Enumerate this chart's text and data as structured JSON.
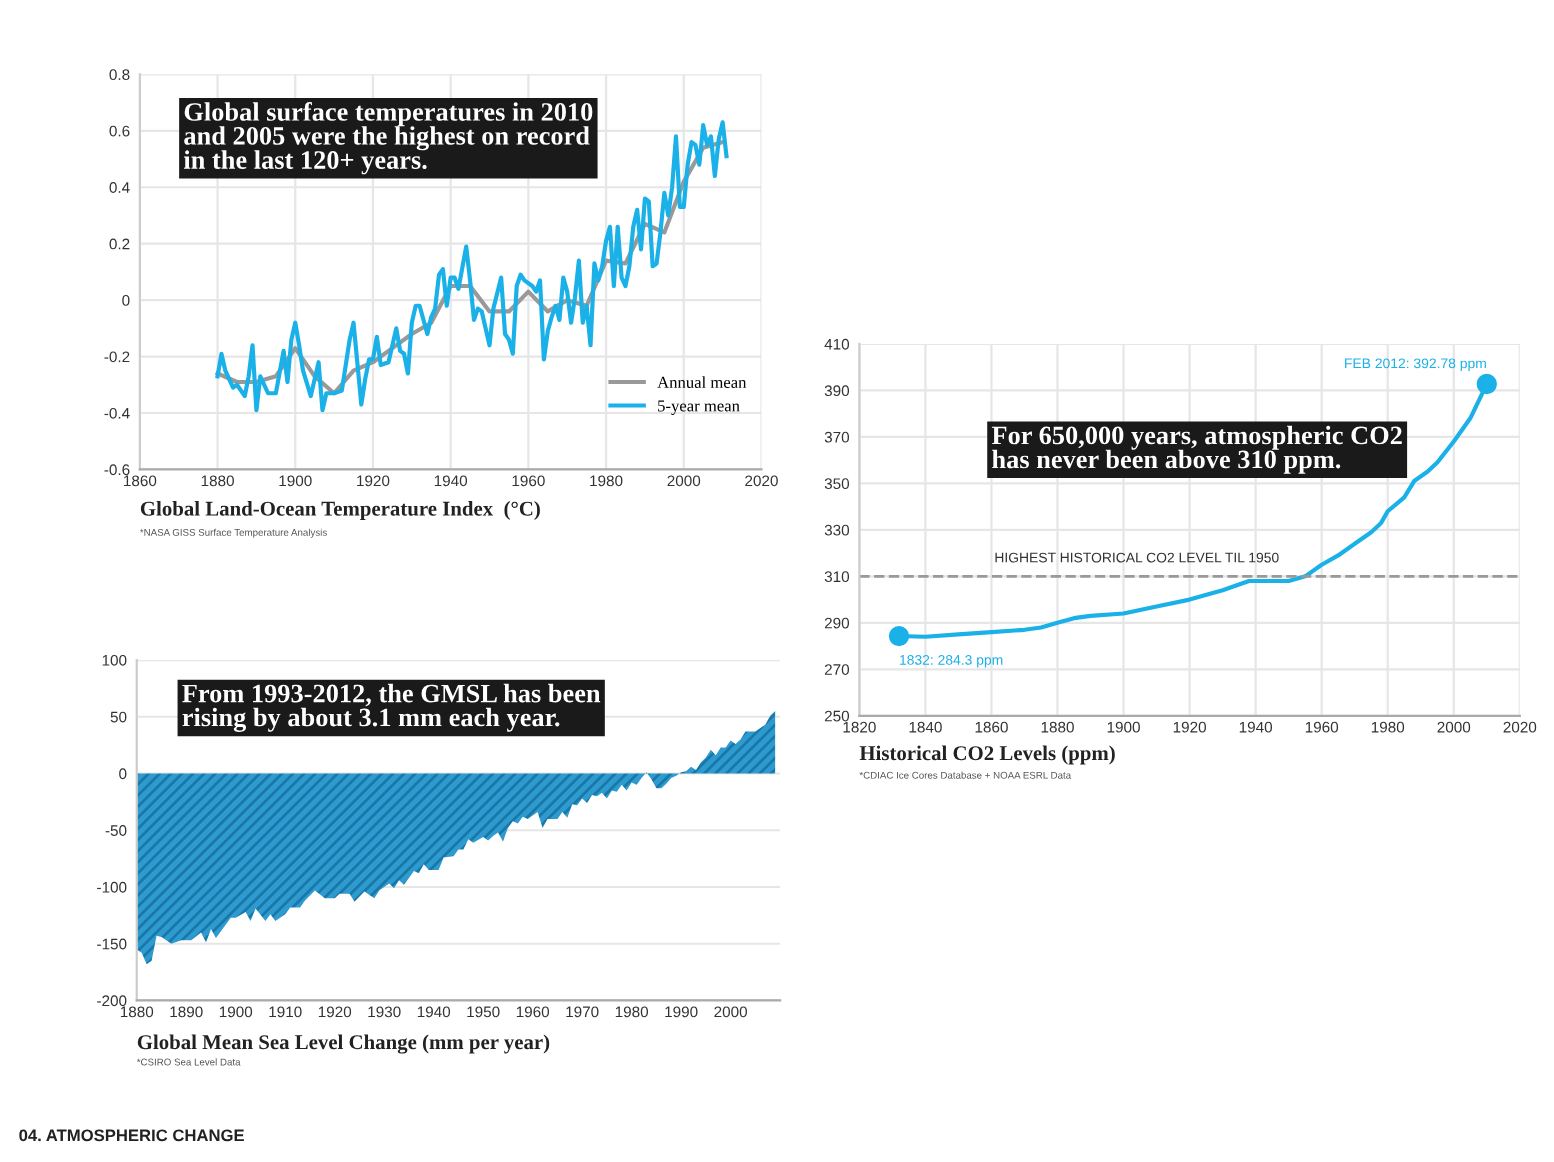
{
  "chart_data": [
    {
      "type": "line",
      "title": "Global Land-Ocean Temperature Index  (°C)",
      "annotations": [
        "Global surface temperatures in 2010\nand 2005 were the highest on record\nin the last 120+ years.",
        "*NASA GISS Surface Temperature Analysis",
        "04. ATMOSPHERIC CHANGE"
      ],
      "series": [
        {
          "name": "Annual mean",
          "color": "#999999",
          "x": [
            1880,
            1885,
            1890,
            1895,
            1900,
            1905,
            1910,
            1915,
            1920,
            1925,
            1930,
            1935,
            1940,
            1945,
            1950,
            1955,
            1960,
            1965,
            1970,
            1975,
            1980,
            1985,
            1990,
            1995,
            2000,
            2005,
            2010
          ],
          "values": [
            -0.26,
            -0.29,
            -0.29,
            -0.27,
            -0.17,
            -0.27,
            -0.33,
            -0.25,
            -0.22,
            -0.17,
            -0.12,
            -0.08,
            0.05,
            0.05,
            -0.04,
            -0.04,
            0.03,
            -0.04,
            0.0,
            -0.02,
            0.14,
            0.13,
            0.27,
            0.24,
            0.42,
            0.54,
            0.56
          ]
        },
        {
          "name": "5-year mean",
          "color": "#1ab0e8",
          "x": [
            1880,
            1881,
            1882,
            1884,
            1885,
            1887,
            1888,
            1889,
            1890,
            1891,
            1893,
            1895,
            1897,
            1898,
            1899,
            1900,
            1901,
            1902,
            1904,
            1906,
            1907,
            1908,
            1910,
            1912,
            1914,
            1915,
            1917,
            1918,
            1919,
            1920,
            1921,
            1922,
            1924,
            1926,
            1927,
            1928,
            1929,
            1930,
            1931,
            1932,
            1934,
            1935,
            1936,
            1937,
            1938,
            1939,
            1940,
            1941,
            1942,
            1944,
            1945,
            1946,
            1947,
            1948,
            1950,
            1951,
            1953,
            1954,
            1955,
            1956,
            1957,
            1958,
            1959,
            1961,
            1962,
            1963,
            1964,
            1965,
            1966,
            1967,
            1968,
            1969,
            1970,
            1971,
            1972,
            1973,
            1974,
            1975,
            1976,
            1977,
            1978,
            1979,
            1980,
            1981,
            1982,
            1983,
            1984,
            1985,
            1986,
            1987,
            1988,
            1989,
            1990,
            1991,
            1992,
            1993,
            1994,
            1995,
            1996,
            1997,
            1998,
            1999,
            2000,
            2001,
            2002,
            2003,
            2004,
            2005,
            2006,
            2007,
            2008,
            2009,
            2010,
            2011
          ],
          "values": [
            -0.27,
            -0.19,
            -0.25,
            -0.31,
            -0.3,
            -0.34,
            -0.27,
            -0.16,
            -0.39,
            -0.27,
            -0.33,
            -0.33,
            -0.18,
            -0.29,
            -0.14,
            -0.08,
            -0.16,
            -0.25,
            -0.34,
            -0.22,
            -0.39,
            -0.33,
            -0.33,
            -0.32,
            -0.14,
            -0.08,
            -0.37,
            -0.28,
            -0.21,
            -0.21,
            -0.13,
            -0.23,
            -0.22,
            -0.1,
            -0.18,
            -0.19,
            -0.26,
            -0.08,
            -0.02,
            -0.02,
            -0.12,
            -0.06,
            -0.03,
            0.09,
            0.11,
            -0.02,
            0.08,
            0.08,
            0.04,
            0.19,
            0.07,
            -0.07,
            -0.03,
            -0.04,
            -0.16,
            -0.03,
            0.08,
            -0.12,
            -0.14,
            -0.19,
            0.05,
            0.09,
            0.07,
            0.05,
            0.03,
            0.07,
            -0.21,
            -0.11,
            -0.06,
            -0.02,
            -0.07,
            0.08,
            0.03,
            -0.08,
            0.01,
            0.14,
            -0.08,
            -0.02,
            -0.16,
            0.13,
            0.07,
            0.12,
            0.21,
            0.26,
            0.05,
            0.26,
            0.08,
            0.05,
            0.12,
            0.26,
            0.32,
            0.18,
            0.36,
            0.35,
            0.12,
            0.13,
            0.24,
            0.38,
            0.3,
            0.4,
            0.58,
            0.33,
            0.33,
            0.48,
            0.56,
            0.55,
            0.48,
            0.62,
            0.55,
            0.58,
            0.44,
            0.57,
            0.63,
            0.51
          ]
        }
      ],
      "xlim": [
        1860,
        2020
      ],
      "xticks": [
        1860,
        1880,
        1900,
        1920,
        1940,
        1960,
        1980,
        2000,
        2020
      ],
      "ylim": [
        -0.6,
        0.8
      ],
      "yticks": [
        -0.6,
        -0.4,
        -0.2,
        0,
        0.2,
        0.4,
        0.6,
        0.8
      ],
      "grid": true,
      "legend": "bottom right",
      "marker": "none",
      "line_style": "solid"
    },
    {
      "type": "line",
      "title": "Historical CO2 Levels (ppm)",
      "annotations": [
        "For 650,000 years, atmospheric CO2\nhas never been above 310 ppm.",
        "*CDIAC Ice Cores Database + NOAA ESRL Data",
        {
          "text": "1832: 284.3 ppm",
          "x": 1832,
          "y": 284.3
        },
        {
          "text": "FEB 2012: 392.78 ppm",
          "x": 2010,
          "y": 392.78
        }
      ],
      "series": [
        {
          "color": "#1ab0e8",
          "x": [
            1832,
            1840,
            1850,
            1860,
            1870,
            1875,
            1880,
            1885,
            1890,
            1900,
            1910,
            1920,
            1930,
            1938,
            1950,
            1955,
            1960,
            1965,
            1970,
            1975,
            1978,
            1980,
            1985,
            1988,
            1992,
            1995,
            2000,
            2005,
            2010
          ],
          "values": [
            284.3,
            284,
            285,
            286,
            287,
            288,
            290,
            292,
            293,
            294,
            297,
            300,
            304,
            308,
            308,
            310,
            315,
            319,
            324,
            329,
            333,
            338,
            344,
            351,
            355,
            359,
            368,
            378,
            392.78
          ]
        },
        {
          "type": "scatter",
          "color": "#1ab0e8",
          "marker": "circle",
          "x": [
            1832,
            2010
          ],
          "values": [
            284.3,
            392.78
          ]
        }
      ],
      "ref_lines": [
        {
          "axis": "y",
          "value": 310,
          "label": "HIGHEST HISTORICAL CO2 LEVEL TIL 1950",
          "color": "#999999",
          "line_style": "dashed"
        }
      ],
      "xlim": [
        1820,
        2020
      ],
      "xticks": [
        1820,
        1840,
        1860,
        1880,
        1900,
        1920,
        1940,
        1960,
        1980,
        2000,
        2020
      ],
      "ylim": [
        250,
        410
      ],
      "yticks": [
        250,
        270,
        290,
        310,
        330,
        350,
        370,
        390,
        410
      ],
      "grid": true,
      "marker": "none",
      "line_style": "solid"
    },
    {
      "type": "area",
      "title": "Global Mean Sea Level Change (mm per year)",
      "annotations": [
        "From 1993-2012, the GMSL has been\nrising by about 3.1 mm each year.",
        "*CSIRO Sea Level Data"
      ],
      "series": [
        {
          "color": "#2e9bd0",
          "x": [
            1880,
            1881,
            1882,
            1883,
            1884,
            1885,
            1887,
            1889,
            1891,
            1893,
            1894,
            1895,
            1896,
            1897,
            1899,
            1900,
            1902,
            1903,
            1904,
            1906,
            1907,
            1908,
            1910,
            1911,
            1913,
            1914,
            1916,
            1918,
            1920,
            1921,
            1923,
            1924,
            1926,
            1928,
            1929,
            1931,
            1932,
            1933,
            1934,
            1936,
            1937,
            1938,
            1939,
            1941,
            1942,
            1944,
            1945,
            1946,
            1947,
            1948,
            1950,
            1951,
            1952,
            1953,
            1954,
            1955,
            1956,
            1957,
            1958,
            1959,
            1961,
            1962,
            1963,
            1964,
            1965,
            1966,
            1967,
            1968,
            1969,
            1970,
            1971,
            1972,
            1973,
            1974,
            1975,
            1976,
            1977,
            1978,
            1979,
            1980,
            1981,
            1982,
            1983,
            1984,
            1985,
            1986,
            1987,
            1988,
            1989,
            1990,
            1991,
            1992,
            1993,
            1994,
            1995,
            1996,
            1997,
            1998,
            1999,
            2000,
            2001,
            2002,
            2003,
            2004,
            2005,
            2006,
            2007,
            2008,
            2009
          ],
          "values": [
            -155,
            -158,
            -168,
            -165,
            -143,
            -144,
            -150,
            -147,
            -147,
            -140,
            -149,
            -137,
            -145,
            -139,
            -127,
            -127,
            -122,
            -130,
            -119,
            -130,
            -124,
            -130,
            -124,
            -118,
            -118,
            -112,
            -103,
            -110,
            -110,
            -106,
            -106,
            -113,
            -104,
            -110,
            -103,
            -97,
            -101,
            -94,
            -98,
            -86,
            -88,
            -80,
            -85,
            -85,
            -74,
            -73,
            -67,
            -67,
            -58,
            -61,
            -56,
            -59,
            -55,
            -52,
            -60,
            -48,
            -42,
            -44,
            -38,
            -40,
            -34,
            -48,
            -40,
            -40,
            -40,
            -34,
            -39,
            -27,
            -28,
            -22,
            -26,
            -19,
            -20,
            -17,
            -22,
            -15,
            -16,
            -10,
            -15,
            -8,
            -10,
            -4,
            1,
            -5,
            -13,
            -13,
            -9,
            -4,
            -2,
            1,
            2,
            6,
            3,
            10,
            14,
            21,
            16,
            23,
            23,
            29,
            26,
            30,
            37,
            37,
            37,
            40,
            43,
            51,
            55
          ]
        }
      ],
      "xlim": [
        1880,
        2010
      ],
      "xticks": [
        1880,
        1890,
        1900,
        1910,
        1920,
        1930,
        1940,
        1950,
        1960,
        1970,
        1980,
        1990,
        2000
      ],
      "ylim": [
        -200,
        100
      ],
      "yticks": [
        -200,
        -150,
        -100,
        -50,
        0,
        50,
        100
      ],
      "grid": "y"
    }
  ]
}
